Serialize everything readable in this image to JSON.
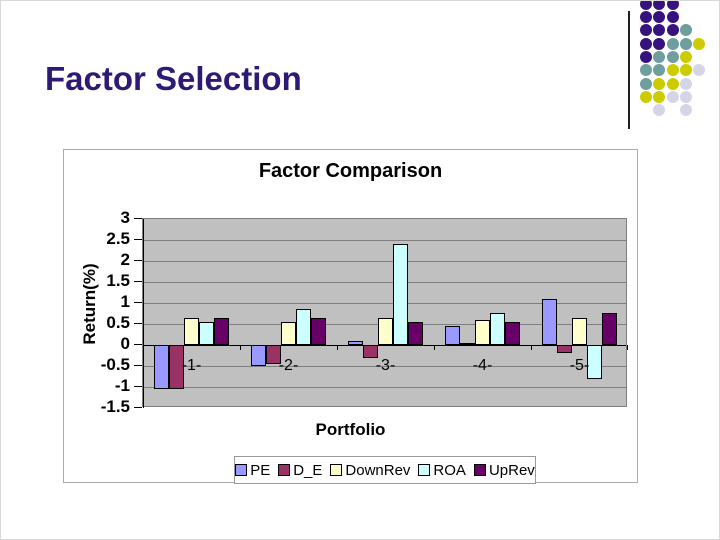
{
  "slide": {
    "title": "Factor Selection",
    "title_color": "#2E1A75",
    "background": "#FFFFFF"
  },
  "decor": {
    "divider_color": "#1F1F1F",
    "dot_colors": {
      "P": "#36127E",
      "T": "#6E9E9E",
      "Y": "#CCCC00",
      "L": "#D5D5E8"
    },
    "dots_pattern": [
      "PPP..",
      "PPP..",
      "PPPT.",
      "PPTTY",
      "PTTY.",
      "TTYYL",
      "TYYL.",
      "YYLL.",
      ".L.L."
    ]
  },
  "chart_data": {
    "type": "bar",
    "title": "Factor Comparison",
    "xlabel": "Portfolio",
    "ylabel": "Return(%)",
    "categories": [
      "-1-",
      "-2-",
      "-3-",
      "-4-",
      "-5-"
    ],
    "series": [
      {
        "name": "PE",
        "color": "#9999FF",
        "values": [
          -1.05,
          -0.5,
          0.1,
          0.45,
          1.1
        ]
      },
      {
        "name": "D_E",
        "color": "#993366",
        "values": [
          -1.05,
          -0.45,
          -0.3,
          0.05,
          -0.2
        ]
      },
      {
        "name": "DownRev",
        "color": "#FFFFCC",
        "values": [
          0.65,
          0.55,
          0.65,
          0.6,
          0.65
        ]
      },
      {
        "name": "ROA",
        "color": "#CCFFFF",
        "values": [
          0.55,
          0.85,
          2.4,
          0.75,
          -0.8
        ]
      },
      {
        "name": "UpRev",
        "color": "#660066",
        "values": [
          0.65,
          0.65,
          0.55,
          0.55,
          0.75
        ]
      }
    ],
    "ylim": [
      -1.5,
      3
    ],
    "ytick_labels": [
      "3",
      "2.5",
      "2",
      "1.5",
      "1",
      "0.5",
      "0",
      "-0.5",
      "-1",
      "-1.5"
    ],
    "grid": true,
    "legend_position": "bottom",
    "plot_bg": "#C0C0C0",
    "gridline_color": "#7F7F7F"
  }
}
